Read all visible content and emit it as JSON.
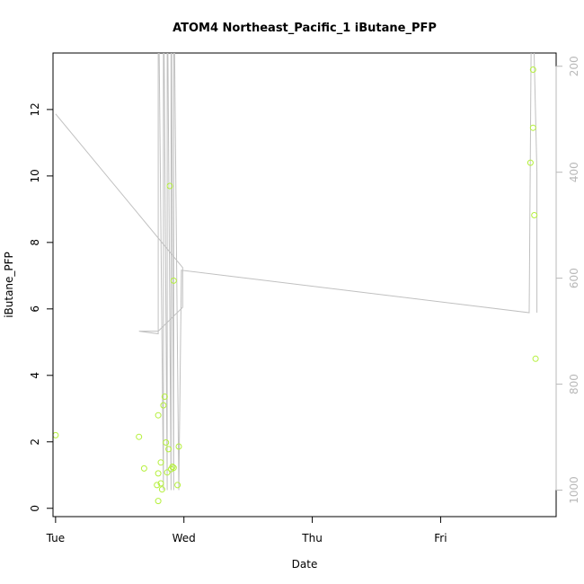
{
  "chart_data": {
    "type": "scatter",
    "title": "ATOM4 Northeast_Pacific_1 iButane_PFP",
    "xlabel": "Date",
    "ylabel": "iButane_PFP",
    "x_ticks": [
      "Tue",
      "Wed",
      "Thu",
      "Fri"
    ],
    "xlim": [
      -0.02,
      3.9
    ],
    "ylim": [
      -0.25,
      13.7
    ],
    "y_ticks": [
      0,
      2,
      4,
      6,
      8,
      10,
      12
    ],
    "right_axis": {
      "label": "",
      "range": [
        1050,
        175
      ],
      "reversed": true,
      "ticks": [
        200,
        400,
        600,
        800,
        1000
      ]
    },
    "grid": false,
    "colors": {
      "points": "#b5f03c",
      "altitude": "#c0c0c0",
      "right_axis": "#b8b8b8"
    },
    "series": [
      {
        "type": "scatter",
        "points": [
          [
            0.0,
            2.2
          ],
          [
            0.65,
            2.15
          ],
          [
            0.69,
            1.2
          ],
          [
            0.79,
            0.7
          ],
          [
            0.8,
            1.05
          ],
          [
            0.8,
            2.8
          ],
          [
            0.8,
            0.22
          ],
          [
            0.82,
            1.38
          ],
          [
            0.82,
            0.75
          ],
          [
            0.83,
            0.57
          ],
          [
            0.84,
            3.1
          ],
          [
            0.85,
            3.36
          ],
          [
            0.86,
            1.98
          ],
          [
            0.87,
            1.08
          ],
          [
            0.88,
            1.78
          ],
          [
            0.89,
            9.7
          ],
          [
            0.9,
            1.18
          ],
          [
            0.91,
            1.25
          ],
          [
            0.92,
            1.22
          ],
          [
            0.92,
            6.85
          ],
          [
            0.95,
            0.7
          ],
          [
            0.96,
            1.86
          ],
          [
            3.7,
            10.4
          ],
          [
            3.72,
            13.2
          ],
          [
            3.72,
            11.45
          ],
          [
            3.73,
            8.82
          ],
          [
            3.74,
            4.5
          ]
        ]
      },
      {
        "type": "line",
        "axis": "right",
        "points": [
          [
            0.0,
            290
          ],
          [
            0.99,
            580
          ],
          [
            0.99,
            655
          ],
          [
            0.8,
            700
          ],
          [
            0.65,
            700
          ],
          [
            0.8,
            705
          ],
          [
            0.8,
            -10
          ],
          [
            0.84,
            1000
          ],
          [
            0.84,
            -10
          ],
          [
            0.87,
            1000
          ],
          [
            0.87,
            -10
          ],
          [
            0.9,
            1000
          ],
          [
            0.9,
            -10
          ],
          [
            0.92,
            1000
          ],
          [
            0.92,
            -10
          ],
          [
            0.96,
            1000
          ],
          [
            0.98,
            585
          ],
          [
            3.69,
            665
          ],
          [
            3.71,
            -10
          ],
          [
            3.75,
            400
          ],
          [
            3.75,
            665
          ]
        ]
      }
    ]
  }
}
